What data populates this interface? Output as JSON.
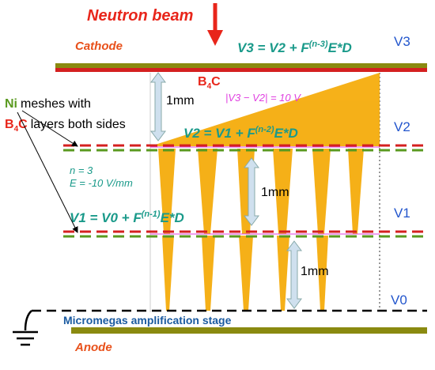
{
  "title": "Neutron beam",
  "cathode": "Cathode",
  "anode": "Anode",
  "micromegas": "Micromegas amplification stage",
  "levels": [
    "V3",
    "V2",
    "V1",
    "V0"
  ],
  "equations": [
    {
      "lhs": "V3 = V2 + F",
      "sup": "(n-3)",
      "rhs": "E*D"
    },
    {
      "lhs": "V2 = V1 + F",
      "sup": "(n-2)",
      "rhs": "E*D"
    },
    {
      "lhs": "V1 = V0 + F",
      "sup": "(n-1)",
      "rhs": "E*D"
    }
  ],
  "ni_meshes": {
    "ni": "Ni",
    "meshes": "meshes with",
    "b": "B",
    "sub": "4",
    "c": "C",
    "layers": "layers both sides"
  },
  "b4c": {
    "b": "B",
    "sub": "4",
    "c": "C"
  },
  "diff": "|V3 − V2| = 10 V",
  "params": [
    "n = 3",
    "E = -10 V/mm"
  ],
  "distances": [
    "1mm",
    "1mm",
    "1mm"
  ]
}
